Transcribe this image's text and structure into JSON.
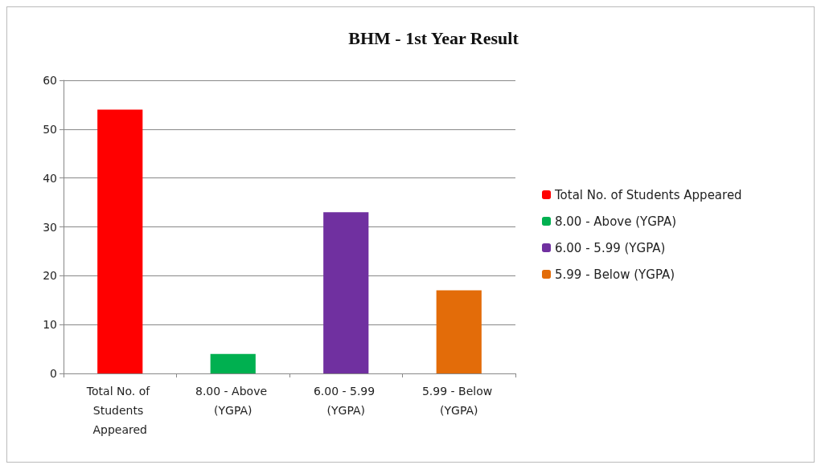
{
  "chart_data": {
    "type": "bar",
    "title": "BHM - 1st Year Result",
    "categories": [
      "Total No. of Students Appeared",
      "8.00 - Above (YGPA)",
      "6.00 - 5.99 (YGPA)",
      "5.99 - Below (YGPA)"
    ],
    "series": [
      {
        "name": "Total No. of Students Appeared",
        "color": "#ff0000",
        "values": [
          54,
          null,
          null,
          null
        ]
      },
      {
        "name": "8.00 - Above (YGPA)",
        "color": "#00b050",
        "values": [
          null,
          4,
          null,
          null
        ]
      },
      {
        "name": "6.00 - 5.99 (YGPA)",
        "color": "#7030a0",
        "values": [
          null,
          null,
          33,
          null
        ]
      },
      {
        "name": "5.99 - Below (YGPA)",
        "color": "#e36c09",
        "values": [
          null,
          null,
          null,
          17
        ]
      }
    ],
    "stacked": true,
    "ylim": [
      0,
      60
    ],
    "yticks": [
      0,
      10,
      20,
      30,
      40,
      50,
      60
    ],
    "grid": "y",
    "legend": "right"
  }
}
